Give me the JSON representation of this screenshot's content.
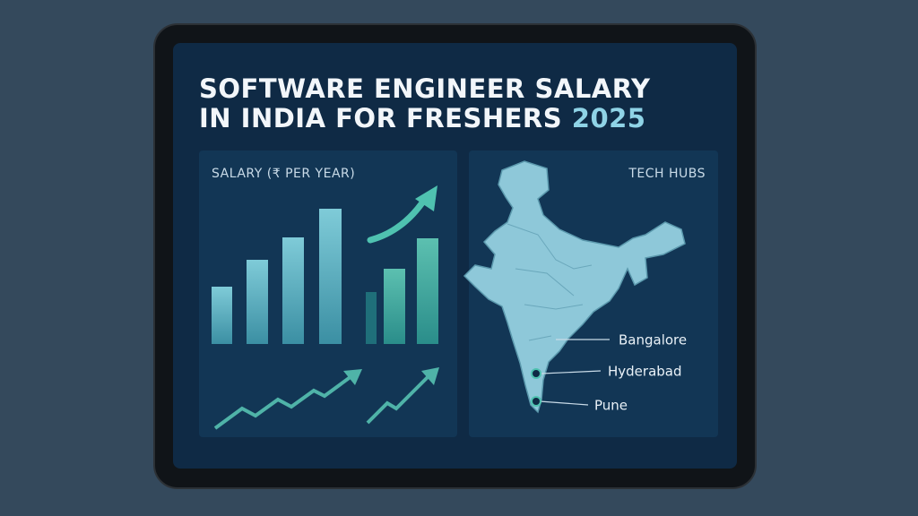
{
  "header": {
    "title_line1": "SOFTWARE ENGINEER SALARY",
    "title_line2": "IN INDIA FOR FRESHERS",
    "title_year": "2025"
  },
  "salary_panel": {
    "label": "SALARY (₹ PER YEAR)"
  },
  "map_panel": {
    "label": "TECH HUBS",
    "hubs": [
      "Bangalore",
      "Hyderabad",
      "Pune"
    ]
  }
}
